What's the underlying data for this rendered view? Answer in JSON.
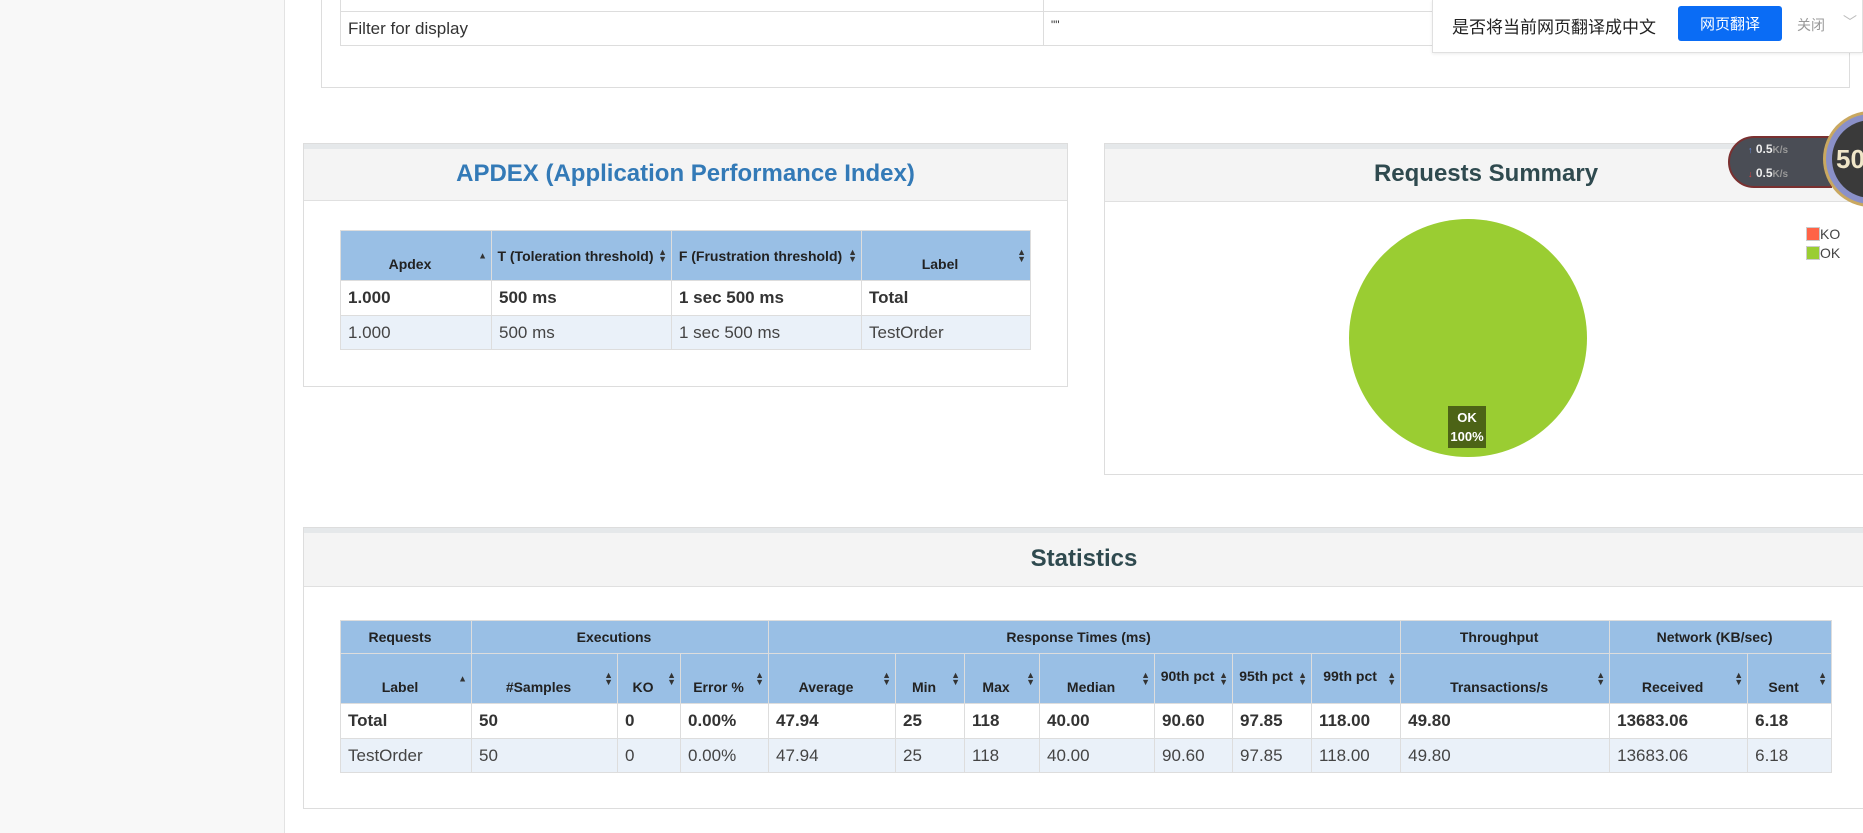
{
  "filter_table": {
    "label": "Filter for display",
    "value": "\"\""
  },
  "apdex": {
    "title": "APDEX (Application Performance Index)",
    "headers": [
      "Apdex",
      "T (Toleration threshold)",
      "F (Frustration threshold)",
      "Label"
    ],
    "rows": [
      [
        "1.000",
        "500 ms",
        "1 sec 500 ms",
        "Total"
      ],
      [
        "1.000",
        "500 ms",
        "1 sec 500 ms",
        "TestOrder"
      ]
    ]
  },
  "requests_summary": {
    "title": "Requests Summary",
    "chart_data": {
      "type": "pie",
      "categories": [
        "KO",
        "OK"
      ],
      "values": [
        0,
        100
      ],
      "colors": [
        "#ff6347",
        "#9acd32"
      ],
      "slice_labels": [
        {
          "name": "OK",
          "pct": "100%"
        }
      ],
      "legend": "top-right"
    }
  },
  "statistics": {
    "title": "Statistics",
    "groups": [
      "Requests",
      "Executions",
      "Response Times (ms)",
      "Throughput",
      "Network (KB/sec)"
    ],
    "headers": [
      "Label",
      "#Samples",
      "KO",
      "Error %",
      "Average",
      "Min",
      "Max",
      "Median",
      "90th pct",
      "95th pct",
      "99th pct",
      "Transactions/s",
      "Received",
      "Sent"
    ],
    "rows": [
      [
        "Total",
        "50",
        "0",
        "0.00%",
        "47.94",
        "25",
        "118",
        "40.00",
        "90.60",
        "97.85",
        "118.00",
        "49.80",
        "13683.06",
        "6.18"
      ],
      [
        "TestOrder",
        "50",
        "0",
        "0.00%",
        "47.94",
        "25",
        "118",
        "40.00",
        "90.60",
        "97.85",
        "118.00",
        "49.80",
        "13683.06",
        "6.18"
      ]
    ]
  },
  "translate_bar": {
    "prompt": "是否将当前网页翻译成中文",
    "translate_button": "网页翻译",
    "close": "关闭"
  },
  "net_widget": {
    "up": "0.5",
    "down": "0.5",
    "unit": "K/s",
    "percent": "50",
    "percent_sign": "%"
  }
}
